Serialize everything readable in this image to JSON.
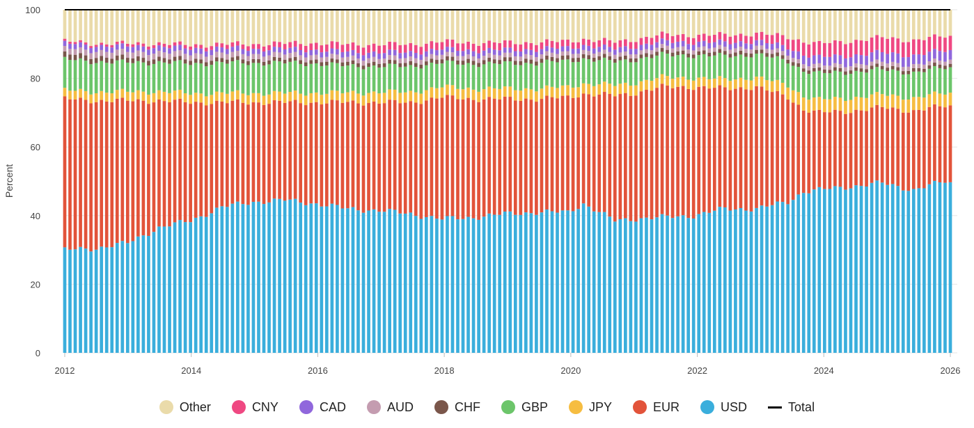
{
  "chart_data": {
    "type": "bar",
    "stacked": true,
    "ylabel": "Percent",
    "xlabel": "",
    "ylim": [
      0,
      100
    ],
    "yticks": [
      "0",
      "20",
      "40",
      "60",
      "80",
      "100"
    ],
    "xticks": [
      "2012",
      "2014",
      "2016",
      "2018",
      "2020",
      "2022",
      "2024",
      "2026"
    ],
    "x_start": "2012-01",
    "x_end": "2026-02",
    "frequency": "monthly",
    "total_line_value": 100,
    "colors": {
      "USD": "#3aaedc",
      "EUR": "#e2533a",
      "JPY": "#f6bd41",
      "GBP": "#6cc56a",
      "CHF": "#7a564a",
      "AUD": "#c49cb0",
      "CAD": "#9067dc",
      "CNY": "#ef4882",
      "Other": "#eadbaa",
      "Total": "#000000"
    },
    "legend": [
      "Other",
      "CNY",
      "CAD",
      "AUD",
      "CHF",
      "GBP",
      "JPY",
      "EUR",
      "USD",
      "Total"
    ],
    "series": [
      {
        "name": "USD",
        "points": [
          [
            2012.0,
            30
          ],
          [
            2012.5,
            30.5
          ],
          [
            2013.0,
            32
          ],
          [
            2013.5,
            36.5
          ],
          [
            2014.0,
            38.5
          ],
          [
            2014.5,
            42.5
          ],
          [
            2015.0,
            44
          ],
          [
            2015.5,
            44.5
          ],
          [
            2016.0,
            43.5
          ],
          [
            2016.5,
            42
          ],
          [
            2017.0,
            41.5
          ],
          [
            2017.5,
            40.5
          ],
          [
            2018.0,
            39
          ],
          [
            2018.5,
            39.5
          ],
          [
            2019.0,
            40.5
          ],
          [
            2019.5,
            41
          ],
          [
            2020.0,
            41
          ],
          [
            2020.25,
            43.5
          ],
          [
            2020.75,
            38.5
          ],
          [
            2021.0,
            39
          ],
          [
            2021.5,
            39.5
          ],
          [
            2022.0,
            40
          ],
          [
            2022.5,
            42
          ],
          [
            2023.0,
            42
          ],
          [
            2023.5,
            44
          ],
          [
            2023.75,
            47
          ],
          [
            2024.0,
            47.5
          ],
          [
            2024.5,
            48.5
          ],
          [
            2025.0,
            49.5
          ],
          [
            2025.5,
            47.5
          ],
          [
            2026.0,
            50
          ],
          [
            2026.1,
            49.5
          ]
        ]
      },
      {
        "name": "EUR",
        "points": [
          [
            2012.0,
            44
          ],
          [
            2012.5,
            43
          ],
          [
            2013.0,
            41.5
          ],
          [
            2013.5,
            37
          ],
          [
            2014.0,
            34.5
          ],
          [
            2014.5,
            30.5
          ],
          [
            2015.0,
            29
          ],
          [
            2015.5,
            28.5
          ],
          [
            2016.0,
            29.5
          ],
          [
            2016.5,
            31
          ],
          [
            2017.0,
            31.5
          ],
          [
            2017.5,
            32.5
          ],
          [
            2018.0,
            35.5
          ],
          [
            2018.5,
            34.5
          ],
          [
            2019.0,
            33.5
          ],
          [
            2019.5,
            33
          ],
          [
            2020.0,
            33.5
          ],
          [
            2020.25,
            32
          ],
          [
            2020.75,
            36.5
          ],
          [
            2021.0,
            36.5
          ],
          [
            2021.5,
            38
          ],
          [
            2022.0,
            37.5
          ],
          [
            2022.5,
            35
          ],
          [
            2023.0,
            35.5
          ],
          [
            2023.5,
            30.5
          ],
          [
            2023.75,
            24
          ],
          [
            2024.0,
            22.5
          ],
          [
            2024.5,
            22
          ],
          [
            2025.0,
            22
          ],
          [
            2025.5,
            23
          ],
          [
            2026.0,
            22
          ],
          [
            2026.1,
            22.5
          ]
        ]
      },
      {
        "name": "JPY",
        "points": [
          [
            2012.0,
            2.5
          ],
          [
            2012.5,
            2.6
          ],
          [
            2013.0,
            2.6
          ],
          [
            2013.5,
            2.7
          ],
          [
            2014.0,
            2.6
          ],
          [
            2014.5,
            2.7
          ],
          [
            2015.0,
            2.7
          ],
          [
            2015.5,
            2.7
          ],
          [
            2016.0,
            2.8
          ],
          [
            2016.5,
            2.8
          ],
          [
            2017.0,
            3
          ],
          [
            2017.5,
            3
          ],
          [
            2018.0,
            3
          ],
          [
            2018.5,
            3
          ],
          [
            2019.0,
            3
          ],
          [
            2019.5,
            3
          ],
          [
            2020.0,
            3
          ],
          [
            2020.25,
            3
          ],
          [
            2020.75,
            3
          ],
          [
            2021.0,
            3
          ],
          [
            2021.5,
            2.8
          ],
          [
            2022.0,
            2.7
          ],
          [
            2022.5,
            2.7
          ],
          [
            2023.0,
            2.8
          ],
          [
            2023.5,
            3.5
          ],
          [
            2023.75,
            3.8
          ],
          [
            2024.0,
            3.8
          ],
          [
            2024.5,
            3.8
          ],
          [
            2025.0,
            3.8
          ],
          [
            2025.5,
            3.8
          ],
          [
            2026.0,
            3.7
          ],
          [
            2026.1,
            3.7
          ]
        ]
      },
      {
        "name": "GBP",
        "points": [
          [
            2012.0,
            9
          ],
          [
            2012.5,
            8.8
          ],
          [
            2013.0,
            8.5
          ],
          [
            2013.5,
            8.5
          ],
          [
            2014.0,
            8.7
          ],
          [
            2014.5,
            8.8
          ],
          [
            2015.0,
            8.8
          ],
          [
            2015.5,
            8.8
          ],
          [
            2016.0,
            8.5
          ],
          [
            2016.5,
            7.8
          ],
          [
            2017.0,
            7.5
          ],
          [
            2017.5,
            7.5
          ],
          [
            2018.0,
            7
          ],
          [
            2018.5,
            7.2
          ],
          [
            2019.0,
            7.3
          ],
          [
            2019.5,
            7.5
          ],
          [
            2020.0,
            7.5
          ],
          [
            2020.25,
            7.3
          ],
          [
            2020.75,
            6.8
          ],
          [
            2021.0,
            6.8
          ],
          [
            2021.5,
            6.5
          ],
          [
            2022.0,
            6.5
          ],
          [
            2022.5,
            6.8
          ],
          [
            2023.0,
            6.7
          ],
          [
            2023.5,
            7
          ],
          [
            2023.75,
            7.5
          ],
          [
            2024.0,
            7.6
          ],
          [
            2024.5,
            7.6
          ],
          [
            2025.0,
            7.2
          ],
          [
            2025.5,
            7.4
          ],
          [
            2026.0,
            7.4
          ],
          [
            2026.1,
            7.4
          ]
        ]
      },
      {
        "name": "CHF",
        "points": [
          [
            2012.0,
            1.6
          ],
          [
            2012.5,
            1.5
          ],
          [
            2013.0,
            1.4
          ],
          [
            2013.5,
            1.3
          ],
          [
            2014.0,
            1.2
          ],
          [
            2014.5,
            1.2
          ],
          [
            2015.0,
            1.1
          ],
          [
            2015.5,
            1.1
          ],
          [
            2016.0,
            1.1
          ],
          [
            2016.5,
            1.1
          ],
          [
            2017.0,
            1.1
          ],
          [
            2017.5,
            1.1
          ],
          [
            2018.0,
            1.2
          ],
          [
            2018.5,
            1.2
          ],
          [
            2019.0,
            1.2
          ],
          [
            2019.5,
            1.2
          ],
          [
            2020.0,
            1.2
          ],
          [
            2020.25,
            1.2
          ],
          [
            2020.75,
            1.1
          ],
          [
            2021.0,
            1.1
          ],
          [
            2021.5,
            1.1
          ],
          [
            2022.0,
            1.1
          ],
          [
            2022.5,
            1.1
          ],
          [
            2023.0,
            1.1
          ],
          [
            2023.5,
            1.1
          ],
          [
            2023.75,
            1
          ],
          [
            2024.0,
            1
          ],
          [
            2024.5,
            1
          ],
          [
            2025.0,
            1
          ],
          [
            2025.5,
            1
          ],
          [
            2026.0,
            1
          ],
          [
            2026.1,
            1
          ]
        ]
      },
      {
        "name": "AUD",
        "points": [
          [
            2012.0,
            1.6
          ],
          [
            2012.5,
            1.7
          ],
          [
            2013.0,
            1.7
          ],
          [
            2013.5,
            1.7
          ],
          [
            2014.0,
            1.6
          ],
          [
            2014.5,
            1.6
          ],
          [
            2015.0,
            1.5
          ],
          [
            2015.5,
            1.5
          ],
          [
            2016.0,
            1.4
          ],
          [
            2016.5,
            1.4
          ],
          [
            2017.0,
            1.4
          ],
          [
            2017.5,
            1.4
          ],
          [
            2018.0,
            1.3
          ],
          [
            2018.5,
            1.3
          ],
          [
            2019.0,
            1.3
          ],
          [
            2019.5,
            1.3
          ],
          [
            2020.0,
            1.2
          ],
          [
            2020.25,
            1.2
          ],
          [
            2020.75,
            1.2
          ],
          [
            2021.0,
            1.2
          ],
          [
            2021.5,
            1.2
          ],
          [
            2022.0,
            1.2
          ],
          [
            2022.5,
            1.2
          ],
          [
            2023.0,
            1.2
          ],
          [
            2023.5,
            1.2
          ],
          [
            2023.75,
            1.2
          ],
          [
            2024.0,
            1.2
          ],
          [
            2024.5,
            1.2
          ],
          [
            2025.0,
            1.2
          ],
          [
            2025.5,
            1.2
          ],
          [
            2026.0,
            1.2
          ],
          [
            2026.1,
            1.2
          ]
        ]
      },
      {
        "name": "CAD",
        "points": [
          [
            2012.0,
            1.5
          ],
          [
            2012.5,
            1.5
          ],
          [
            2013.0,
            1.6
          ],
          [
            2013.5,
            1.6
          ],
          [
            2014.0,
            1.6
          ],
          [
            2014.5,
            1.5
          ],
          [
            2015.0,
            1.5
          ],
          [
            2015.5,
            1.5
          ],
          [
            2016.0,
            1.5
          ],
          [
            2016.5,
            1.6
          ],
          [
            2017.0,
            1.6
          ],
          [
            2017.5,
            1.6
          ],
          [
            2018.0,
            1.5
          ],
          [
            2018.5,
            1.5
          ],
          [
            2019.0,
            1.5
          ],
          [
            2019.5,
            1.5
          ],
          [
            2020.0,
            1.5
          ],
          [
            2020.25,
            1.5
          ],
          [
            2020.75,
            1.5
          ],
          [
            2021.0,
            1.6
          ],
          [
            2021.5,
            1.6
          ],
          [
            2022.0,
            1.6
          ],
          [
            2022.5,
            1.6
          ],
          [
            2023.0,
            1.6
          ],
          [
            2023.5,
            1.8
          ],
          [
            2023.75,
            2.5
          ],
          [
            2024.0,
            2.5
          ],
          [
            2024.5,
            2.6
          ],
          [
            2025.0,
            2.8
          ],
          [
            2025.5,
            2.8
          ],
          [
            2026.0,
            2.8
          ],
          [
            2026.1,
            2.8
          ]
        ]
      },
      {
        "name": "CNY",
        "points": [
          [
            2012.0,
            0.6
          ],
          [
            2012.5,
            0.6
          ],
          [
            2013.0,
            0.8
          ],
          [
            2013.5,
            0.9
          ],
          [
            2014.0,
            1
          ],
          [
            2014.5,
            1.2
          ],
          [
            2015.0,
            1.4
          ],
          [
            2015.5,
            1.6
          ],
          [
            2016.0,
            2
          ],
          [
            2016.5,
            2.2
          ],
          [
            2017.0,
            2.3
          ],
          [
            2017.5,
            2.3
          ],
          [
            2018.0,
            2.2
          ],
          [
            2018.5,
            2.2
          ],
          [
            2019.0,
            2.1
          ],
          [
            2019.5,
            2
          ],
          [
            2020.0,
            1.9
          ],
          [
            2020.25,
            1.8
          ],
          [
            2020.75,
            2
          ],
          [
            2021.0,
            2
          ],
          [
            2021.5,
            2
          ],
          [
            2022.0,
            2
          ],
          [
            2022.5,
            2.2
          ],
          [
            2023.0,
            2.2
          ],
          [
            2023.5,
            3
          ],
          [
            2023.75,
            3.8
          ],
          [
            2024.0,
            4
          ],
          [
            2024.5,
            4.2
          ],
          [
            2025.0,
            4.4
          ],
          [
            2025.5,
            4.4
          ],
          [
            2026.0,
            4.2
          ],
          [
            2026.1,
            4.2
          ]
        ]
      }
    ]
  },
  "legend_labels": {
    "other": "Other",
    "cny": "CNY",
    "cad": "CAD",
    "aud": "AUD",
    "chf": "CHF",
    "gbp": "GBP",
    "jpy": "JPY",
    "eur": "EUR",
    "usd": "USD",
    "total": "Total"
  }
}
